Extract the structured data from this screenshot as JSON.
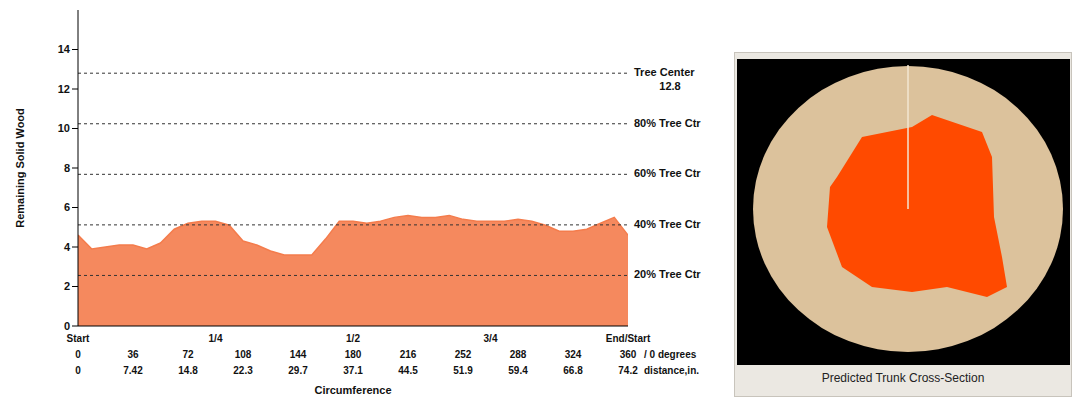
{
  "chart_data": {
    "type": "area",
    "y_label": "Remaining Solid Wood",
    "x_label": "Circumference",
    "x": [
      0,
      9,
      18,
      27,
      36,
      45,
      54,
      63,
      72,
      81,
      90,
      99,
      108,
      117,
      126,
      135,
      144,
      153,
      162,
      171,
      180,
      189,
      198,
      207,
      216,
      225,
      234,
      243,
      252,
      261,
      270,
      279,
      288,
      297,
      306,
      315,
      324,
      333,
      342,
      351,
      360
    ],
    "values": [
      4.6,
      3.9,
      4.0,
      4.1,
      4.1,
      3.9,
      4.2,
      4.9,
      5.2,
      5.3,
      5.3,
      5.1,
      4.3,
      4.1,
      3.8,
      3.6,
      3.6,
      3.6,
      4.4,
      5.3,
      5.3,
      5.2,
      5.3,
      5.5,
      5.6,
      5.5,
      5.5,
      5.6,
      5.4,
      5.3,
      5.3,
      5.3,
      5.4,
      5.3,
      5.1,
      4.8,
      4.8,
      4.9,
      5.2,
      5.5,
      4.6
    ],
    "color": "#f47c4c",
    "xlim": [
      0,
      360
    ],
    "xticks": [
      0,
      36,
      72,
      108,
      144,
      180,
      216,
      252,
      288,
      324,
      360
    ],
    "ylim": [
      0,
      16
    ],
    "yticks": [
      0,
      2,
      4,
      6,
      8,
      10,
      12,
      14
    ],
    "grid": false,
    "x_position_ticks": [
      {
        "value": 0,
        "label": "Start"
      },
      {
        "value": 90,
        "label": "1/4"
      },
      {
        "value": 180,
        "label": "1/2"
      },
      {
        "value": 270,
        "label": "3/4"
      },
      {
        "value": 360,
        "label": "End/Start"
      }
    ],
    "x_distance_ticks": [
      {
        "value": 0,
        "label": "0"
      },
      {
        "value": 36,
        "label": "7.42"
      },
      {
        "value": 72,
        "label": "14.8"
      },
      {
        "value": 108,
        "label": "22.3"
      },
      {
        "value": 144,
        "label": "29.7"
      },
      {
        "value": 180,
        "label": "37.1"
      },
      {
        "value": 216,
        "label": "44.5"
      },
      {
        "value": 252,
        "label": "51.9"
      },
      {
        "value": 288,
        "label": "59.4"
      },
      {
        "value": 324,
        "label": "66.8"
      },
      {
        "value": 360,
        "label": "74.2"
      }
    ],
    "x_degree_suffix": "/ 0 degrees",
    "x_distance_suffix": "distance,in.",
    "reference_lines": [
      {
        "value": 12.8,
        "label": "Tree Center",
        "value_label": "12.8"
      },
      {
        "value": 10.24,
        "label": "80% Tree Ctr"
      },
      {
        "value": 7.68,
        "label": "60% Tree Ctr"
      },
      {
        "value": 5.12,
        "label": "40% Tree Ctr"
      },
      {
        "value": 2.56,
        "label": "20% Tree Ctr"
      }
    ]
  },
  "cross_section": {
    "caption": "Predicted Trunk Cross-Section"
  }
}
